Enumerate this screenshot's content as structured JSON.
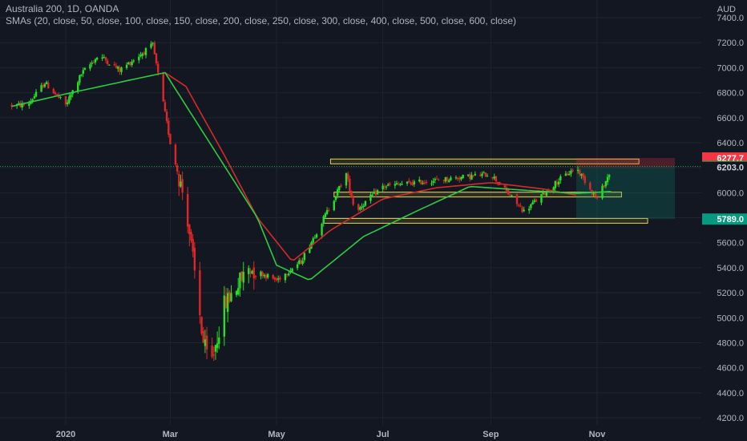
{
  "header": {
    "symbol_line": "Australia 200, 1D, OANDA",
    "indicator_line": "SMAs (20, close, 50, close, 100, close, 150, close, 200, close, 250, close, 300, close, 400, close, 500, close, 600, close)"
  },
  "colors": {
    "background": "#131722",
    "up": "#26e026",
    "down": "#e02626",
    "sma_green": "#2ecc40",
    "sma_red": "#d42a2a",
    "zone": "#e8d44d",
    "grid": "#1f2431"
  },
  "chart_data": {
    "type": "candlestick",
    "currency": "AUD",
    "ylim": [
      4150,
      7480
    ],
    "y_ticks": [
      "7400.0",
      "7200.0",
      "7000.0",
      "6800.0",
      "6600.0",
      "6400.0",
      "6200.0",
      "6000.0",
      "5800.0",
      "5600.0",
      "5400.0",
      "5200.0",
      "5000.0",
      "4800.0",
      "4600.0",
      "4400.0",
      "4200.0"
    ],
    "x_ticks": [
      "2020",
      "Mar",
      "May",
      "Jul",
      "Sep",
      "Nov"
    ],
    "price_tags": [
      {
        "label": "6277.7",
        "value": 6277.7,
        "color": "#f23645"
      },
      {
        "label": "6209.9",
        "value": 6209.9,
        "color": "#22ab3d"
      },
      {
        "label": "6203.0",
        "value": 6203.0,
        "color": "#d1d4dc"
      },
      {
        "label": "5789.0",
        "value": 5789.0,
        "color": "#089981"
      }
    ],
    "keypoints": [
      {
        "d": "Dec 10",
        "v": 6700
      },
      {
        "d": "Dec 20",
        "v": 6880
      },
      {
        "d": "Jan 1",
        "v": 6700
      },
      {
        "d": "Jan 10",
        "v": 6950
      },
      {
        "d": "Jan 20",
        "v": 7100
      },
      {
        "d": "Feb 1",
        "v": 6980
      },
      {
        "d": "Feb 20",
        "v": 7180
      },
      {
        "d": "Mar 1",
        "v": 6400
      },
      {
        "d": "Mar 10",
        "v": 5900
      },
      {
        "d": "Mar 20",
        "v": 4800
      },
      {
        "d": "Mar 24",
        "v": 4600
      },
      {
        "d": "Apr 1",
        "v": 5100
      },
      {
        "d": "Apr 15",
        "v": 5400
      },
      {
        "d": "May 1",
        "v": 5300
      },
      {
        "d": "May 15",
        "v": 5450
      },
      {
        "d": "Jun 1",
        "v": 5900
      },
      {
        "d": "Jun 10",
        "v": 6150
      },
      {
        "d": "Jun 15",
        "v": 5850
      },
      {
        "d": "Jul 1",
        "v": 6050
      },
      {
        "d": "Aug 1",
        "v": 6100
      },
      {
        "d": "Sep 1",
        "v": 6150
      },
      {
        "d": "Sep 20",
        "v": 5850
      },
      {
        "d": "Oct 10",
        "v": 6100
      },
      {
        "d": "Oct 20",
        "v": 6200
      },
      {
        "d": "Nov 1",
        "v": 5950
      },
      {
        "d": "Nov 10",
        "v": 6210
      }
    ],
    "sma_green_keypoints": [
      {
        "d": "Dec 1",
        "v": 6690
      },
      {
        "d": "Jan 1",
        "v": 6790
      },
      {
        "d": "Feb 10",
        "v": 6910
      },
      {
        "d": "Feb 27",
        "v": 6960
      },
      {
        "d": "Apr 20",
        "v": 5800
      },
      {
        "d": "May 1",
        "v": 5420
      },
      {
        "d": "May 20",
        "v": 5300
      },
      {
        "d": "Jun 20",
        "v": 5650
      },
      {
        "d": "Jul 20",
        "v": 5850
      },
      {
        "d": "Aug 20",
        "v": 6050
      },
      {
        "d": "Sep 20",
        "v": 6020
      },
      {
        "d": "Oct 20",
        "v": 5995
      },
      {
        "d": "Nov 10",
        "v": 6010
      }
    ],
    "sma_red_keypoints": [
      {
        "d": "Feb 27",
        "v": 6960
      },
      {
        "d": "Mar 10",
        "v": 6850
      },
      {
        "d": "Apr 1",
        "v": 6300
      },
      {
        "d": "Apr 20",
        "v": 5800
      },
      {
        "d": "May 10",
        "v": 5450
      },
      {
        "d": "Jun 1",
        "v": 5700
      },
      {
        "d": "Jul 1",
        "v": 5950
      },
      {
        "d": "Aug 1",
        "v": 6040
      },
      {
        "d": "Sep 1",
        "v": 6080
      },
      {
        "d": "Oct 1",
        "v": 6030
      },
      {
        "d": "Oct 20",
        "v": 5980
      }
    ],
    "zones": [
      {
        "from": "Jun 1",
        "to": "Nov 25",
        "v": 6250
      },
      {
        "from": "Jun 3",
        "to": "Nov 15",
        "v": 5985
      },
      {
        "from": "May 28",
        "to": "Nov 30",
        "v": 5775
      }
    ],
    "position": {
      "from": "Oct 20",
      "to": "Dec 1",
      "stop": 6277.7,
      "entry": 6203.0,
      "target": 5789.0
    }
  }
}
